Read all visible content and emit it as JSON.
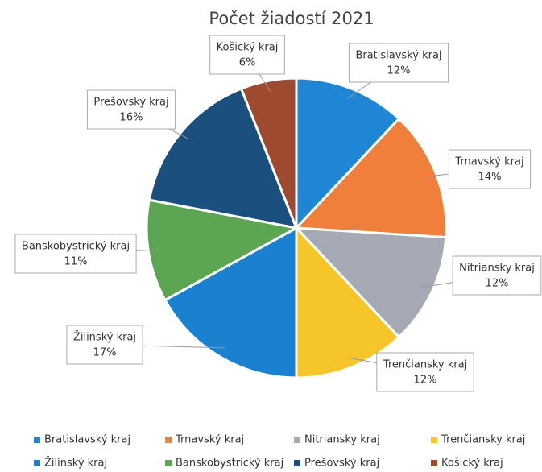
{
  "chart_data": {
    "type": "pie",
    "title": "Počet žiadostí 2021",
    "categories": [
      "Bratislavský kraj",
      "Trnavský kraj",
      "Nitriansky kraj",
      "Trenčiansky kraj",
      "Žilinský kraj",
      "Banskobystrický kraj",
      "Prešovský kraj",
      "Košický kraj"
    ],
    "values": [
      12,
      14,
      12,
      12,
      17,
      11,
      16,
      6
    ],
    "value_labels": [
      "12%",
      "14%",
      "12%",
      "12%",
      "17%",
      "11%",
      "16%",
      "6%"
    ],
    "colors": [
      "#1f86d6",
      "#f07f3c",
      "#a5a9b4",
      "#f5c52a",
      "#1a80d0",
      "#5ba553",
      "#1a4f7e",
      "#9e4a31"
    ],
    "legend": "bottom"
  }
}
